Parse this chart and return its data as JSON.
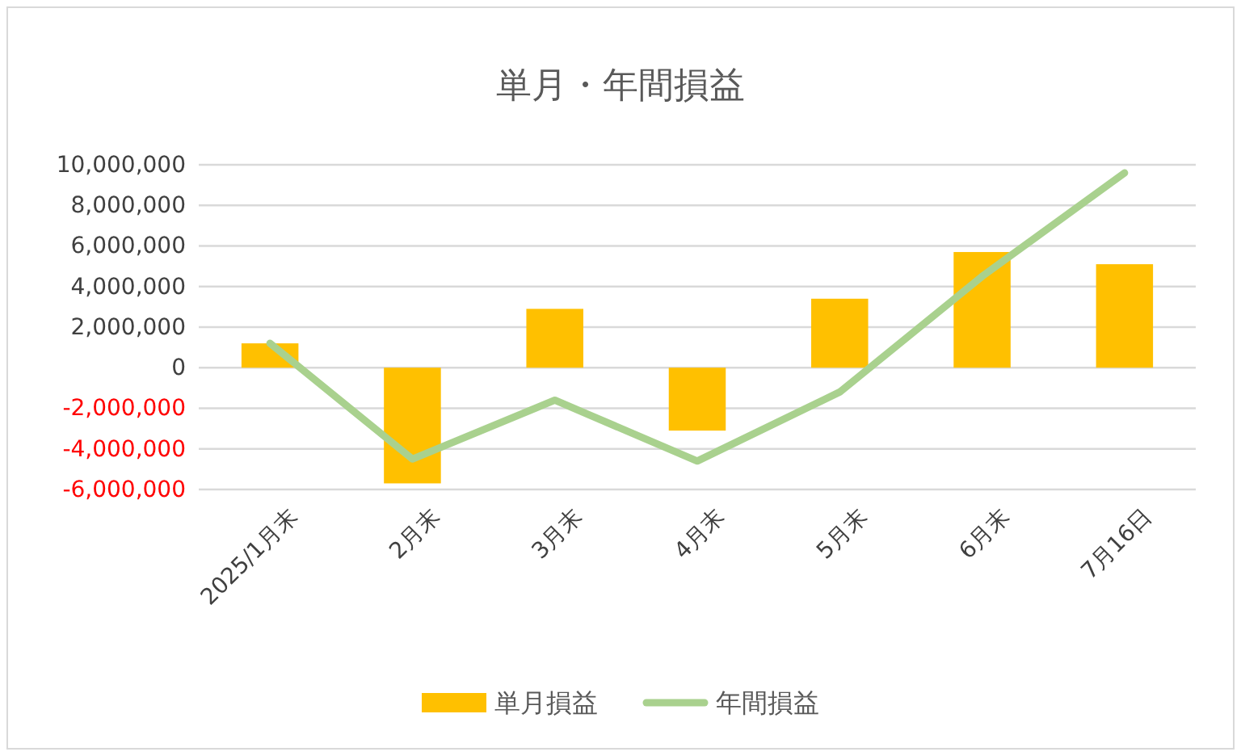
{
  "chart_data": {
    "type": "bar",
    "title": "単月・年間損益",
    "categories": [
      "2025/1月末",
      "2月末",
      "3月末",
      "4月末",
      "5月末",
      "6月末",
      "7月16日"
    ],
    "series": [
      {
        "name": "単月損益",
        "color": "#ffc000",
        "values": [
          1200000,
          -5700000,
          2900000,
          -3100000,
          3400000,
          5700000,
          5100000
        ]
      },
      {
        "name": "年間損益",
        "type": "line",
        "color": "#a9d18e",
        "values": [
          1200000,
          -4500000,
          -1600000,
          -4600000,
          -1200000,
          4500000,
          9600000
        ]
      }
    ],
    "ylim": [
      -6000000,
      10000000
    ],
    "yticks": [
      {
        "value": -6000000,
        "label": "-6,000,000"
      },
      {
        "value": -4000000,
        "label": "-4,000,000"
      },
      {
        "value": -2000000,
        "label": "-2,000,000"
      },
      0,
      {
        "value": 2000000,
        "label": "2,000,000"
      },
      {
        "value": 4000000,
        "label": "4,000,000"
      },
      {
        "value": 6000000,
        "label": "6,000,000"
      },
      {
        "value": 8000000,
        "label": "8,000,000"
      },
      {
        "value": 10000000,
        "label": "10,000,000"
      }
    ],
    "grid": "y",
    "legend": "bottom",
    "marker": "none",
    "line_style": "solid"
  }
}
